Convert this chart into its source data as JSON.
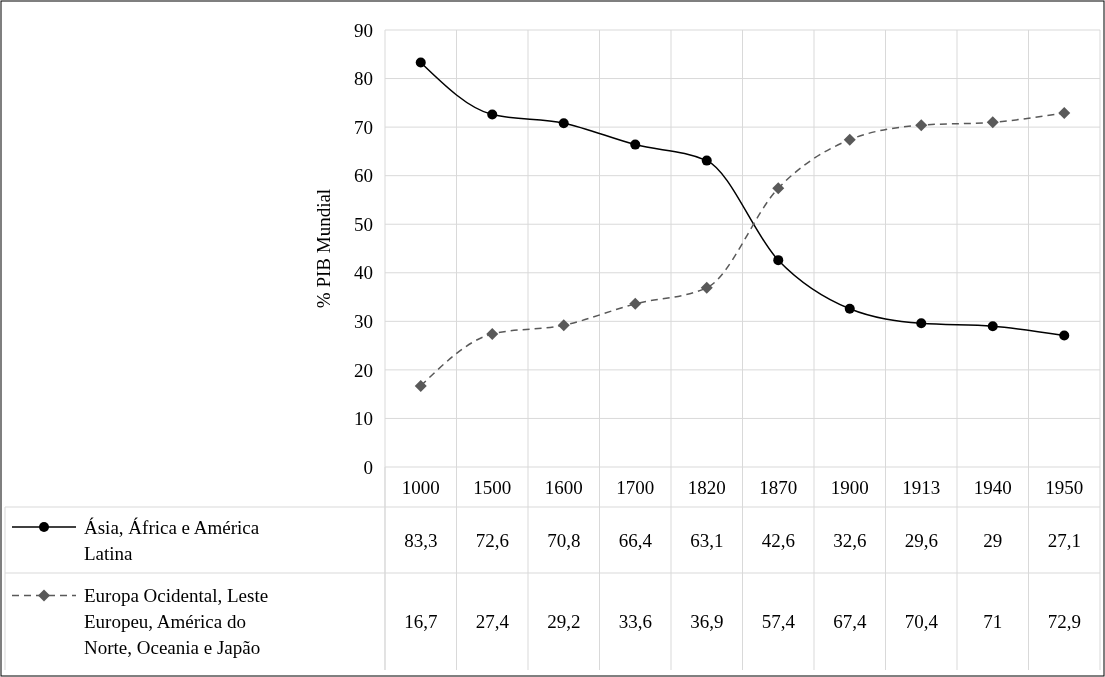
{
  "chart_data": {
    "type": "line",
    "ylabel": "% PIB Mundial",
    "categories": [
      "1000",
      "1500",
      "1600",
      "1700",
      "1820",
      "1870",
      "1900",
      "1913",
      "1940",
      "1950"
    ],
    "ylim": [
      0,
      90
    ],
    "yticks": [
      0,
      10,
      20,
      30,
      40,
      50,
      60,
      70,
      80,
      90
    ],
    "grid": true,
    "legend": "bottom",
    "data_labels": true,
    "series": [
      {
        "name": "Ásia, África e América Latina",
        "color": "#000000",
        "marker": "circle",
        "line_style": "solid",
        "values": [
          83.3,
          72.6,
          70.8,
          66.4,
          63.1,
          42.6,
          32.6,
          29.6,
          29,
          27.1
        ],
        "value_labels": [
          "83,3",
          "72,6",
          "70,8",
          "66,4",
          "63,1",
          "42,6",
          "32,6",
          "29,6",
          "29",
          "27,1"
        ]
      },
      {
        "name": "Europa Ocidental, Leste Europeu, América do Norte, Oceania e Japão",
        "color": "#595959",
        "marker": "diamond",
        "line_style": "dashed",
        "values": [
          16.7,
          27.4,
          29.2,
          33.6,
          36.9,
          57.4,
          67.4,
          70.4,
          71,
          72.9
        ],
        "value_labels": [
          "16,7",
          "27,4",
          "29,2",
          "33,6",
          "36,9",
          "57,4",
          "67,4",
          "70,4",
          "71",
          "72,9"
        ]
      }
    ]
  }
}
